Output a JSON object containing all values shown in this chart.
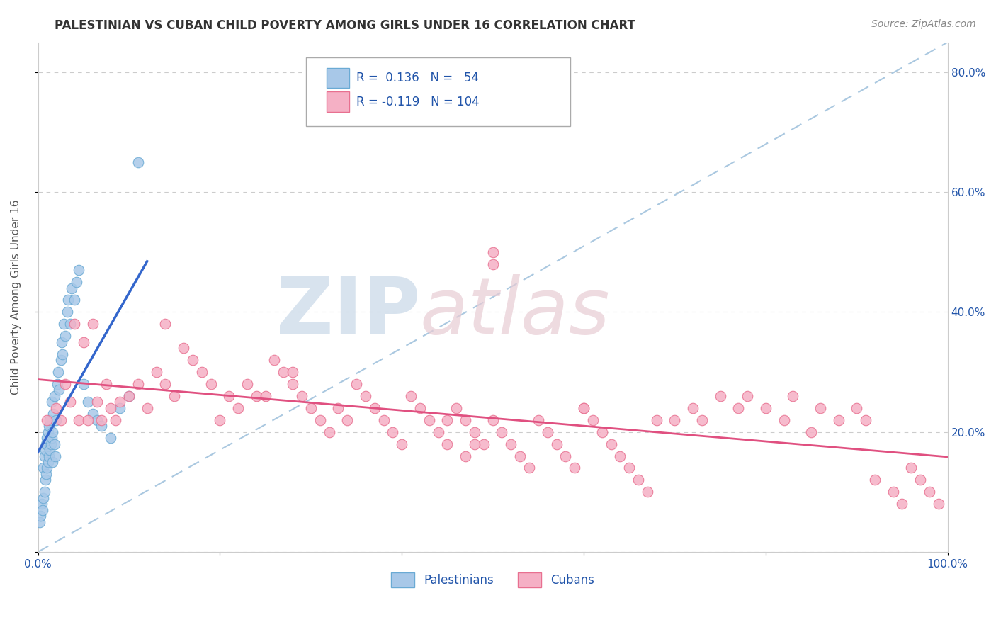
{
  "title": "PALESTINIAN VS CUBAN CHILD POVERTY AMONG GIRLS UNDER 16 CORRELATION CHART",
  "source": "Source: ZipAtlas.com",
  "ylabel": "Child Poverty Among Girls Under 16",
  "xlim": [
    0.0,
    1.0
  ],
  "ylim": [
    0.0,
    0.85
  ],
  "x_ticks": [
    0.0,
    0.2,
    0.4,
    0.6,
    0.8,
    1.0
  ],
  "x_tick_labels": [
    "0.0%",
    "",
    "",
    "",
    "",
    "100.0%"
  ],
  "y_ticks": [
    0.0,
    0.2,
    0.4,
    0.6,
    0.8
  ],
  "y_tick_labels_right": [
    "",
    "20.0%",
    "40.0%",
    "60.0%",
    "80.0%"
  ],
  "palestinian_color": "#a8c8e8",
  "cuban_color": "#f5b0c5",
  "palestinian_edge": "#6aaad4",
  "cuban_edge": "#e87090",
  "trend_pal_color": "#3366cc",
  "trend_cub_color": "#e05080",
  "diagonal_color": "#aac8e0",
  "R_pal": 0.136,
  "N_pal": 54,
  "R_cub": -0.119,
  "N_cub": 104,
  "legend_text_color": "#2255aa",
  "background_color": "#ffffff",
  "grid_color": "#cccccc",
  "pal_x": [
    0.002,
    0.003,
    0.004,
    0.005,
    0.006,
    0.006,
    0.007,
    0.007,
    0.008,
    0.008,
    0.009,
    0.009,
    0.01,
    0.01,
    0.011,
    0.011,
    0.012,
    0.012,
    0.013,
    0.013,
    0.014,
    0.015,
    0.015,
    0.016,
    0.016,
    0.017,
    0.018,
    0.018,
    0.019,
    0.02,
    0.021,
    0.022,
    0.023,
    0.025,
    0.026,
    0.027,
    0.028,
    0.03,
    0.032,
    0.033,
    0.035,
    0.037,
    0.04,
    0.042,
    0.045,
    0.05,
    0.055,
    0.06,
    0.065,
    0.07,
    0.08,
    0.09,
    0.1,
    0.11
  ],
  "pal_y": [
    0.05,
    0.06,
    0.08,
    0.07,
    0.09,
    0.14,
    0.1,
    0.16,
    0.12,
    0.17,
    0.13,
    0.18,
    0.14,
    0.19,
    0.15,
    0.2,
    0.16,
    0.21,
    0.17,
    0.22,
    0.18,
    0.19,
    0.25,
    0.15,
    0.2,
    0.23,
    0.18,
    0.26,
    0.16,
    0.22,
    0.28,
    0.3,
    0.27,
    0.32,
    0.35,
    0.33,
    0.38,
    0.36,
    0.4,
    0.42,
    0.38,
    0.44,
    0.42,
    0.45,
    0.47,
    0.28,
    0.25,
    0.23,
    0.22,
    0.21,
    0.19,
    0.24,
    0.26,
    0.65
  ],
  "cub_x": [
    0.01,
    0.02,
    0.025,
    0.03,
    0.035,
    0.04,
    0.045,
    0.05,
    0.055,
    0.06,
    0.065,
    0.07,
    0.075,
    0.08,
    0.085,
    0.09,
    0.1,
    0.11,
    0.12,
    0.13,
    0.14,
    0.15,
    0.16,
    0.17,
    0.18,
    0.19,
    0.2,
    0.21,
    0.22,
    0.23,
    0.24,
    0.25,
    0.26,
    0.27,
    0.28,
    0.29,
    0.3,
    0.31,
    0.32,
    0.33,
    0.34,
    0.35,
    0.36,
    0.37,
    0.38,
    0.39,
    0.4,
    0.41,
    0.42,
    0.43,
    0.44,
    0.45,
    0.46,
    0.47,
    0.48,
    0.49,
    0.5,
    0.51,
    0.52,
    0.53,
    0.54,
    0.55,
    0.56,
    0.57,
    0.58,
    0.59,
    0.6,
    0.61,
    0.62,
    0.63,
    0.64,
    0.65,
    0.66,
    0.67,
    0.68,
    0.7,
    0.72,
    0.73,
    0.75,
    0.77,
    0.78,
    0.8,
    0.82,
    0.83,
    0.85,
    0.86,
    0.88,
    0.9,
    0.91,
    0.92,
    0.94,
    0.95,
    0.96,
    0.97,
    0.98,
    0.99,
    0.5,
    0.5,
    0.48,
    0.47,
    0.14,
    0.28,
    0.45,
    0.6
  ],
  "cub_y": [
    0.22,
    0.24,
    0.22,
    0.28,
    0.25,
    0.38,
    0.22,
    0.35,
    0.22,
    0.38,
    0.25,
    0.22,
    0.28,
    0.24,
    0.22,
    0.25,
    0.26,
    0.28,
    0.24,
    0.3,
    0.28,
    0.26,
    0.34,
    0.32,
    0.3,
    0.28,
    0.22,
    0.26,
    0.24,
    0.28,
    0.26,
    0.26,
    0.32,
    0.3,
    0.28,
    0.26,
    0.24,
    0.22,
    0.2,
    0.24,
    0.22,
    0.28,
    0.26,
    0.24,
    0.22,
    0.2,
    0.18,
    0.26,
    0.24,
    0.22,
    0.2,
    0.18,
    0.24,
    0.22,
    0.2,
    0.18,
    0.22,
    0.2,
    0.18,
    0.16,
    0.14,
    0.22,
    0.2,
    0.18,
    0.16,
    0.14,
    0.24,
    0.22,
    0.2,
    0.18,
    0.16,
    0.14,
    0.12,
    0.1,
    0.22,
    0.22,
    0.24,
    0.22,
    0.26,
    0.24,
    0.26,
    0.24,
    0.22,
    0.26,
    0.2,
    0.24,
    0.22,
    0.24,
    0.22,
    0.12,
    0.1,
    0.08,
    0.14,
    0.12,
    0.1,
    0.08,
    0.48,
    0.5,
    0.18,
    0.16,
    0.38,
    0.3,
    0.22,
    0.24
  ]
}
